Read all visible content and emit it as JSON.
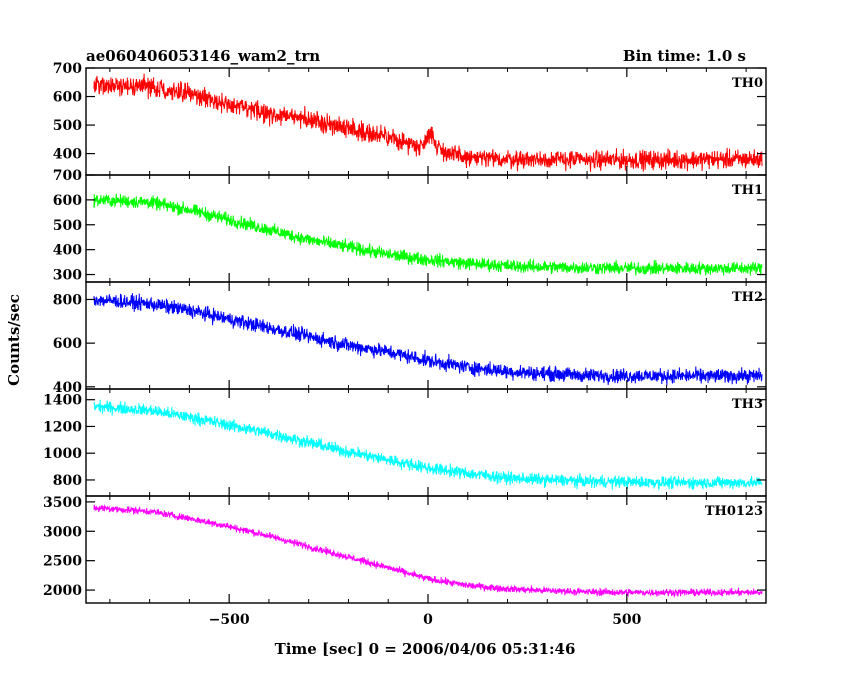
{
  "chart_data": {
    "type": "line",
    "title": "ae060406053146_wam2_trn",
    "subtitle": "Bin time: 1.0 s",
    "xlabel": "Time [sec] 0 = 2006/04/06 05:31:46",
    "ylabel": "Counts/sec",
    "xlim": [
      -860,
      850
    ],
    "x_ticks": [
      -500,
      0,
      500
    ],
    "x_tick_labels": [
      "−500",
      "0",
      "500"
    ],
    "grid": false,
    "panels": [
      {
        "name": "TH0",
        "color": "#ff0000",
        "ylim": [
          325,
          700
        ],
        "y_ticks": [
          400,
          500,
          600,
          700
        ],
        "y_tick_labels": [
          "400",
          "500",
          "600",
          "700"
        ],
        "x": [
          -840,
          -700,
          -600,
          -500,
          -400,
          -300,
          -200,
          -100,
          -15,
          5,
          20,
          50,
          100,
          200,
          300,
          400,
          500,
          600,
          700,
          840
        ],
        "y": [
          640,
          635,
          610,
          570,
          540,
          520,
          490,
          455,
          425,
          480,
          430,
          400,
          385,
          380,
          380,
          378,
          378,
          378,
          380,
          380
        ],
        "noise": 28
      },
      {
        "name": "TH1",
        "color": "#00ff00",
        "ylim": [
          270,
          700
        ],
        "y_ticks": [
          300,
          400,
          500,
          600,
          700
        ],
        "y_tick_labels": [
          "300",
          "400",
          "500",
          "600",
          "700"
        ],
        "x": [
          -840,
          -700,
          -600,
          -500,
          -400,
          -300,
          -200,
          -100,
          0,
          100,
          200,
          300,
          400,
          500,
          600,
          700,
          840
        ],
        "y": [
          600,
          590,
          560,
          520,
          480,
          440,
          410,
          380,
          360,
          345,
          335,
          330,
          328,
          325,
          325,
          325,
          325
        ],
        "noise": 22
      },
      {
        "name": "TH2",
        "color": "#0000ff",
        "ylim": [
          390,
          880
        ],
        "y_ticks": [
          400,
          600,
          800
        ],
        "y_tick_labels": [
          "400",
          "600",
          "800"
        ],
        "x": [
          -840,
          -700,
          -600,
          -500,
          -400,
          -300,
          -200,
          -100,
          0,
          100,
          200,
          300,
          400,
          500,
          600,
          700,
          840
        ],
        "y": [
          800,
          780,
          750,
          710,
          670,
          630,
          590,
          560,
          520,
          490,
          470,
          460,
          452,
          450,
          450,
          450,
          450
        ],
        "noise": 28
      },
      {
        "name": "TH3",
        "color": "#00ffff",
        "ylim": [
          680,
          1480
        ],
        "y_ticks": [
          800,
          1000,
          1200,
          1400
        ],
        "y_tick_labels": [
          "800",
          "1000",
          "1200",
          "1400"
        ],
        "x": [
          -840,
          -700,
          -600,
          -500,
          -400,
          -300,
          -200,
          -100,
          0,
          100,
          200,
          300,
          400,
          500,
          600,
          700,
          840
        ],
        "y": [
          1350,
          1320,
          1270,
          1210,
          1150,
          1080,
          1010,
          950,
          890,
          850,
          815,
          800,
          790,
          785,
          780,
          780,
          780
        ],
        "noise": 38
      },
      {
        "name": "TH0123",
        "color": "#ff00ff",
        "ylim": [
          1780,
          3600
        ],
        "y_ticks": [
          2000,
          2500,
          3000,
          3500
        ],
        "y_tick_labels": [
          "2000",
          "2500",
          "3000",
          "3500"
        ],
        "x": [
          -840,
          -700,
          -600,
          -500,
          -400,
          -300,
          -200,
          -100,
          0,
          100,
          200,
          300,
          400,
          500,
          600,
          700,
          840
        ],
        "y": [
          3400,
          3340,
          3220,
          3080,
          2920,
          2740,
          2560,
          2380,
          2190,
          2080,
          2020,
          1990,
          1970,
          1960,
          1960,
          1960,
          1960
        ],
        "noise": 50
      }
    ]
  }
}
